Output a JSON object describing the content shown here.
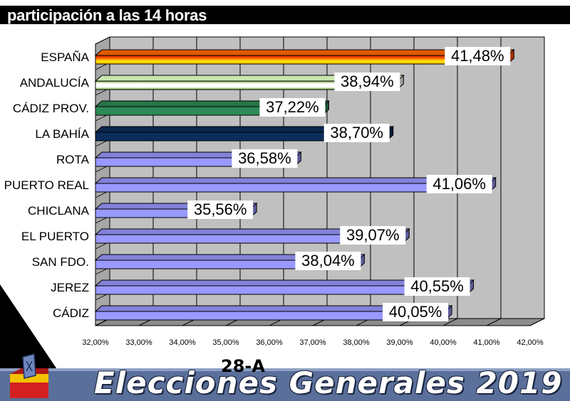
{
  "header": {
    "title": "participación a las 14 horas"
  },
  "footer": {
    "title": "Elecciones Generales 2019",
    "tag": "28-A"
  },
  "icons": {
    "ballot": "ballot-box-icon"
  },
  "chart_data": {
    "type": "bar",
    "orientation": "horizontal",
    "categories": [
      "ESPAÑA",
      "ANDALUCÍA",
      "CÁDIZ PROV.",
      "LA BAHÍA",
      "ROTA",
      "PUERTO REAL",
      "CHICLANA",
      "EL PUERTO",
      "SAN FDO.",
      "JEREZ",
      "CÁDIZ"
    ],
    "values": [
      41.48,
      38.94,
      37.22,
      38.7,
      36.58,
      41.06,
      35.56,
      39.07,
      38.04,
      40.55,
      40.05
    ],
    "value_labels": [
      "41,48%",
      "38,94%",
      "37,22%",
      "38,70%",
      "36,58%",
      "41,06%",
      "35,56%",
      "39,07%",
      "38,04%",
      "40,55%",
      "40,05%"
    ],
    "xlim": [
      32,
      42
    ],
    "xticks": [
      "32,00%",
      "33,00%",
      "34,00%",
      "35,00%",
      "36,00%",
      "37,00%",
      "38,00%",
      "39,00%",
      "40,00%",
      "41,00%",
      "42,00%"
    ],
    "grid": true,
    "colors": [
      "#ff9900",
      "#ffffff",
      "#2e8b57",
      "#0a2d5c",
      "#9999ff",
      "#9999ff",
      "#9999ff",
      "#9999ff",
      "#9999ff",
      "#9999ff",
      "#9999ff"
    ]
  }
}
